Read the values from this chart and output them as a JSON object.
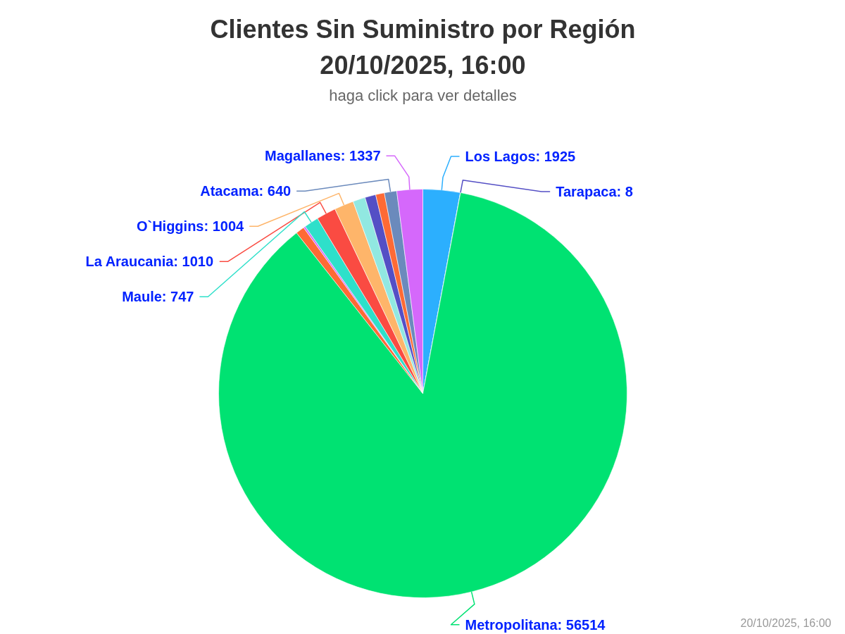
{
  "chart_data": {
    "type": "pie",
    "title": "Clientes Sin Suministro por Región\n20/10/2025, 16:00",
    "subtitle": "haga click para ver detalles",
    "categories": [
      "Los Lagos",
      "Tarapaca",
      "Metropolitana",
      null,
      null,
      "Maule",
      "La Araucania",
      "O`Higgins",
      null,
      null,
      null,
      "Atacama",
      "Magallanes"
    ],
    "values": [
      1925,
      8,
      56514,
      450,
      100,
      747,
      1010,
      1004,
      640,
      560,
      450,
      640,
      1337
    ],
    "value_labels": [
      "1925",
      "8",
      "56514",
      null,
      null,
      "747",
      "1010",
      "1004",
      null,
      null,
      null,
      "640",
      "1337"
    ],
    "colors": [
      "#2caffe",
      "#544fc5",
      "#00e272",
      "#fe6a35",
      "#d568fb",
      "#2ee0ca",
      "#fa4b42",
      "#feb56a",
      "#91e8e1",
      "#544fc5",
      "#fe6a35",
      "#6b8abc",
      "#d568fb"
    ],
    "annotations": [
      "20/10/2025, 16:00"
    ]
  }
}
